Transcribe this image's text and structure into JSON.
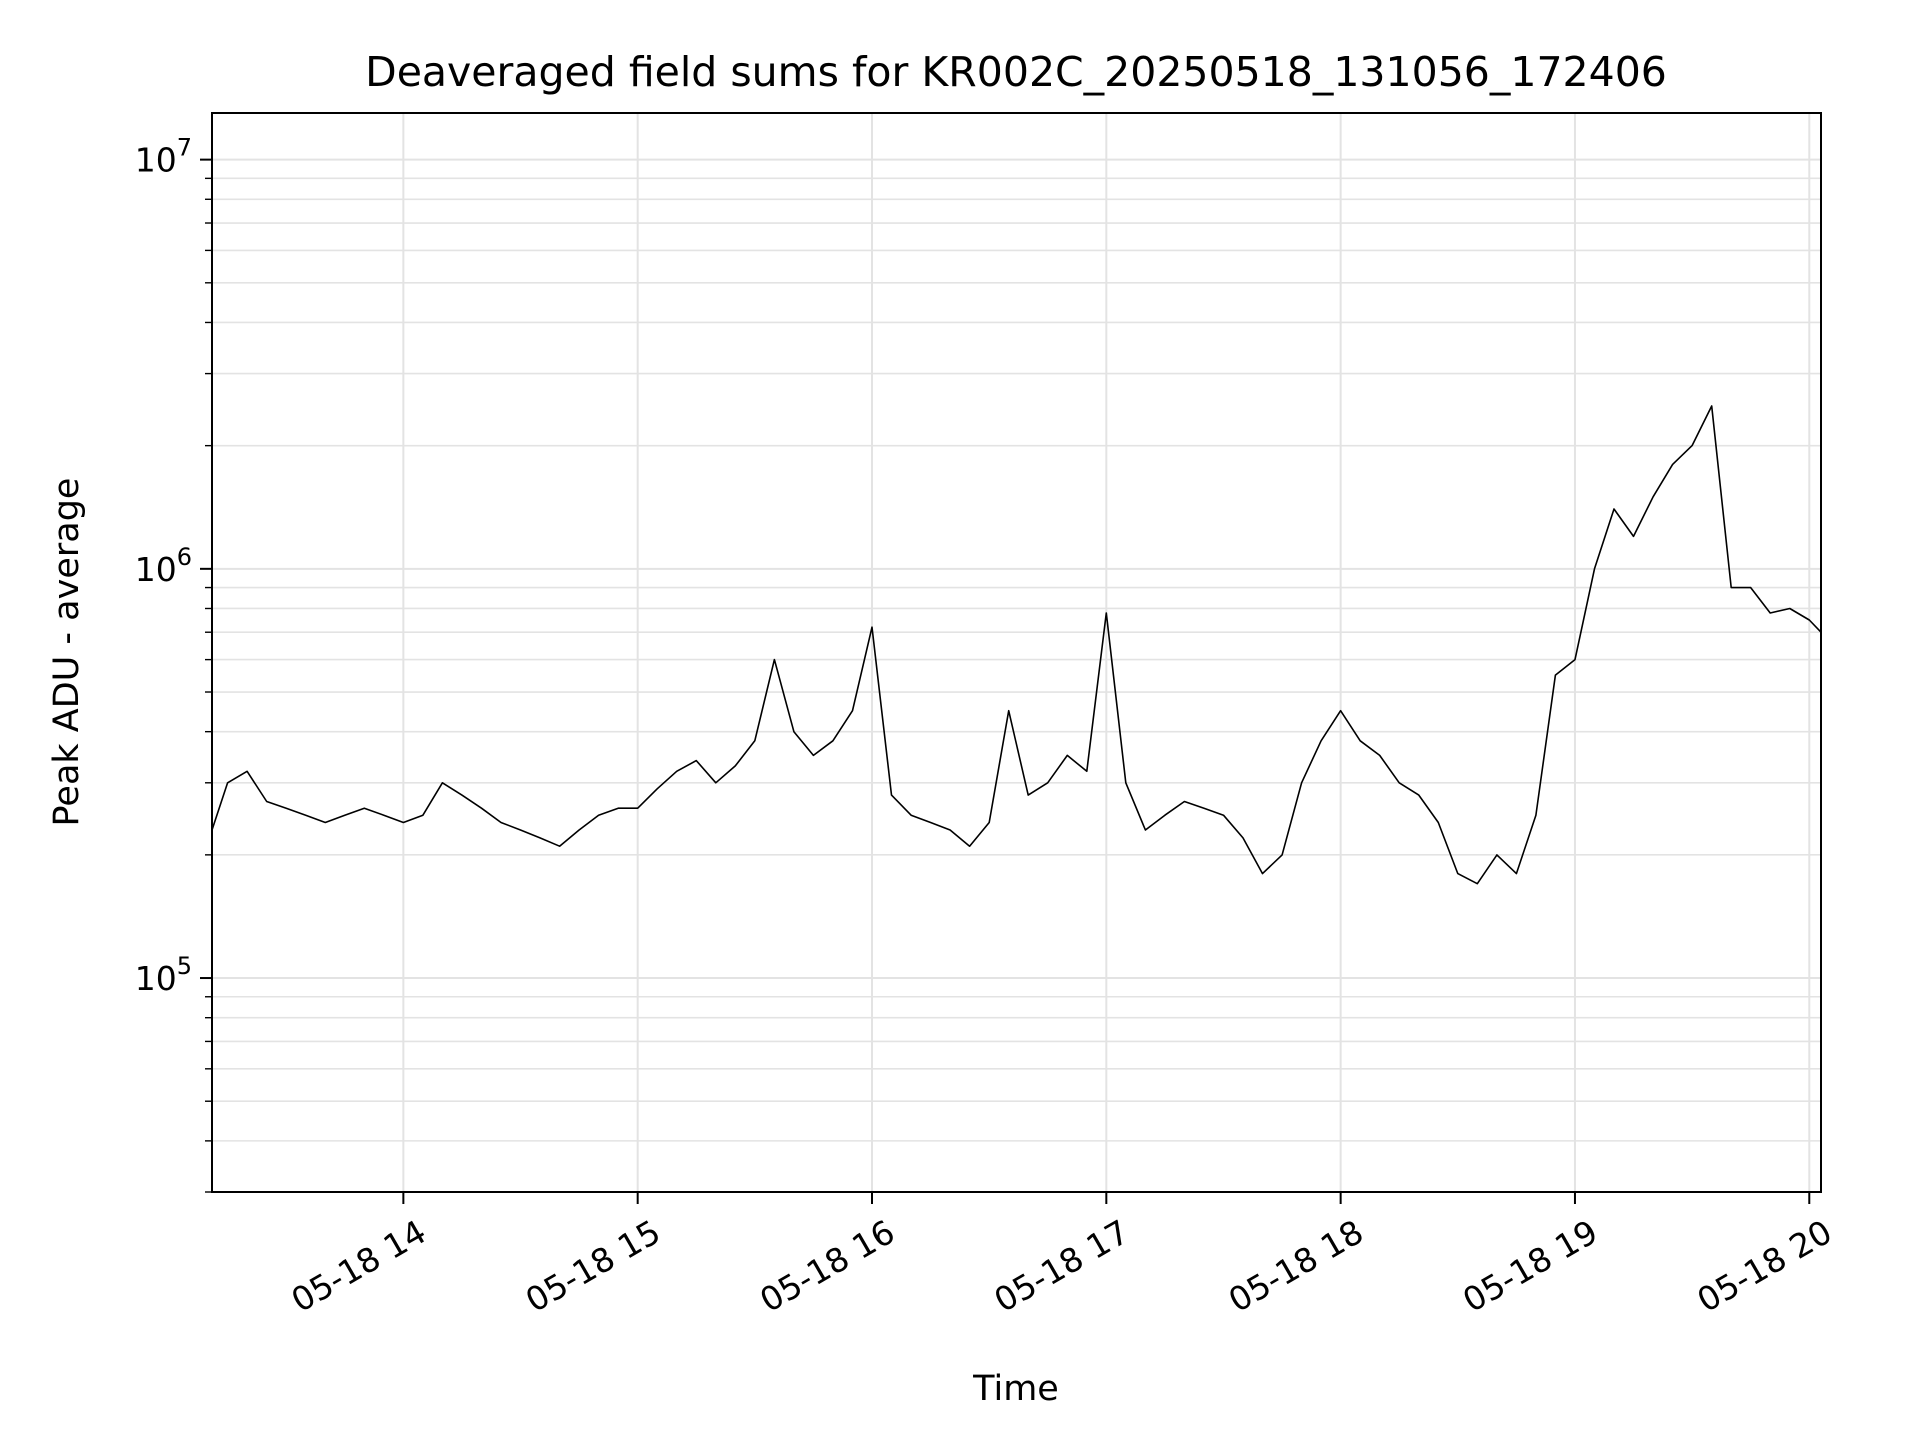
{
  "chart_data": {
    "type": "line",
    "title": "Deaveraged field sums for KR002C_20250518_131056_172406",
    "xlabel": "Time",
    "ylabel": "Peak ADU - average",
    "yscale": "log",
    "ylim": [
      30000,
      13000000
    ],
    "xlim": [
      "05-18 13:11",
      "05-18 20:03"
    ],
    "grid": true,
    "legend": "none",
    "line_color": "#000000",
    "x_ticks": [
      {
        "time": "05-18 14:00",
        "label": "05-18 14"
      },
      {
        "time": "05-18 15:00",
        "label": "05-18 15"
      },
      {
        "time": "05-18 16:00",
        "label": "05-18 16"
      },
      {
        "time": "05-18 17:00",
        "label": "05-18 17"
      },
      {
        "time": "05-18 18:00",
        "label": "05-18 18"
      },
      {
        "time": "05-18 19:00",
        "label": "05-18 19"
      },
      {
        "time": "05-18 20:00",
        "label": "05-18 20"
      }
    ],
    "y_ticks": [
      {
        "value": 100000,
        "base": "10",
        "exp": "5"
      },
      {
        "value": 1000000,
        "base": "10",
        "exp": "6"
      },
      {
        "value": 10000000,
        "base": "10",
        "exp": "7"
      }
    ],
    "series": [
      {
        "x": [
          "05-18 13:11",
          "05-18 13:15",
          "05-18 13:20",
          "05-18 13:25",
          "05-18 13:30",
          "05-18 13:35",
          "05-18 13:40",
          "05-18 13:45",
          "05-18 13:50",
          "05-18 13:55",
          "05-18 14:00",
          "05-18 14:05",
          "05-18 14:10",
          "05-18 14:15",
          "05-18 14:20",
          "05-18 14:25",
          "05-18 14:30",
          "05-18 14:35",
          "05-18 14:40",
          "05-18 14:45",
          "05-18 14:50",
          "05-18 14:55",
          "05-18 15:00",
          "05-18 15:05",
          "05-18 15:10",
          "05-18 15:15",
          "05-18 15:20",
          "05-18 15:25",
          "05-18 15:30",
          "05-18 15:35",
          "05-18 15:40",
          "05-18 15:45",
          "05-18 15:50",
          "05-18 15:55",
          "05-18 16:00",
          "05-18 16:05",
          "05-18 16:10",
          "05-18 16:15",
          "05-18 16:20",
          "05-18 16:25",
          "05-18 16:30",
          "05-18 16:35",
          "05-18 16:40",
          "05-18 16:45",
          "05-18 16:50",
          "05-18 16:55",
          "05-18 17:00",
          "05-18 17:05",
          "05-18 17:10",
          "05-18 17:15",
          "05-18 17:20",
          "05-18 17:25",
          "05-18 17:30",
          "05-18 17:35",
          "05-18 17:40",
          "05-18 17:45",
          "05-18 17:50",
          "05-18 17:55",
          "05-18 18:00",
          "05-18 18:05",
          "05-18 18:10",
          "05-18 18:15",
          "05-18 18:20",
          "05-18 18:25",
          "05-18 18:30",
          "05-18 18:35",
          "05-18 18:40",
          "05-18 18:45",
          "05-18 18:50",
          "05-18 18:55",
          "05-18 19:00",
          "05-18 19:05",
          "05-18 19:10",
          "05-18 19:15",
          "05-18 19:20",
          "05-18 19:25",
          "05-18 19:30",
          "05-18 19:35",
          "05-18 19:40",
          "05-18 19:45",
          "05-18 19:50",
          "05-18 19:55",
          "05-18 20:00",
          "05-18 20:03"
        ],
        "y": [
          230000,
          300000,
          320000,
          270000,
          260000,
          250000,
          240000,
          250000,
          260000,
          250000,
          240000,
          250000,
          300000,
          280000,
          260000,
          240000,
          230000,
          220000,
          210000,
          230000,
          250000,
          260000,
          260000,
          290000,
          320000,
          340000,
          300000,
          330000,
          380000,
          600000,
          400000,
          350000,
          380000,
          450000,
          720000,
          280000,
          250000,
          240000,
          230000,
          210000,
          240000,
          450000,
          280000,
          300000,
          350000,
          320000,
          780000,
          300000,
          230000,
          250000,
          270000,
          260000,
          250000,
          220000,
          180000,
          200000,
          300000,
          380000,
          450000,
          380000,
          350000,
          300000,
          280000,
          240000,
          180000,
          170000,
          200000,
          180000,
          250000,
          550000,
          600000,
          1000000,
          1400000,
          1200000,
          1500000,
          1800000,
          2000000,
          2500000,
          900000,
          900000,
          780000,
          800000,
          750000,
          700000
        ]
      }
    ]
  }
}
